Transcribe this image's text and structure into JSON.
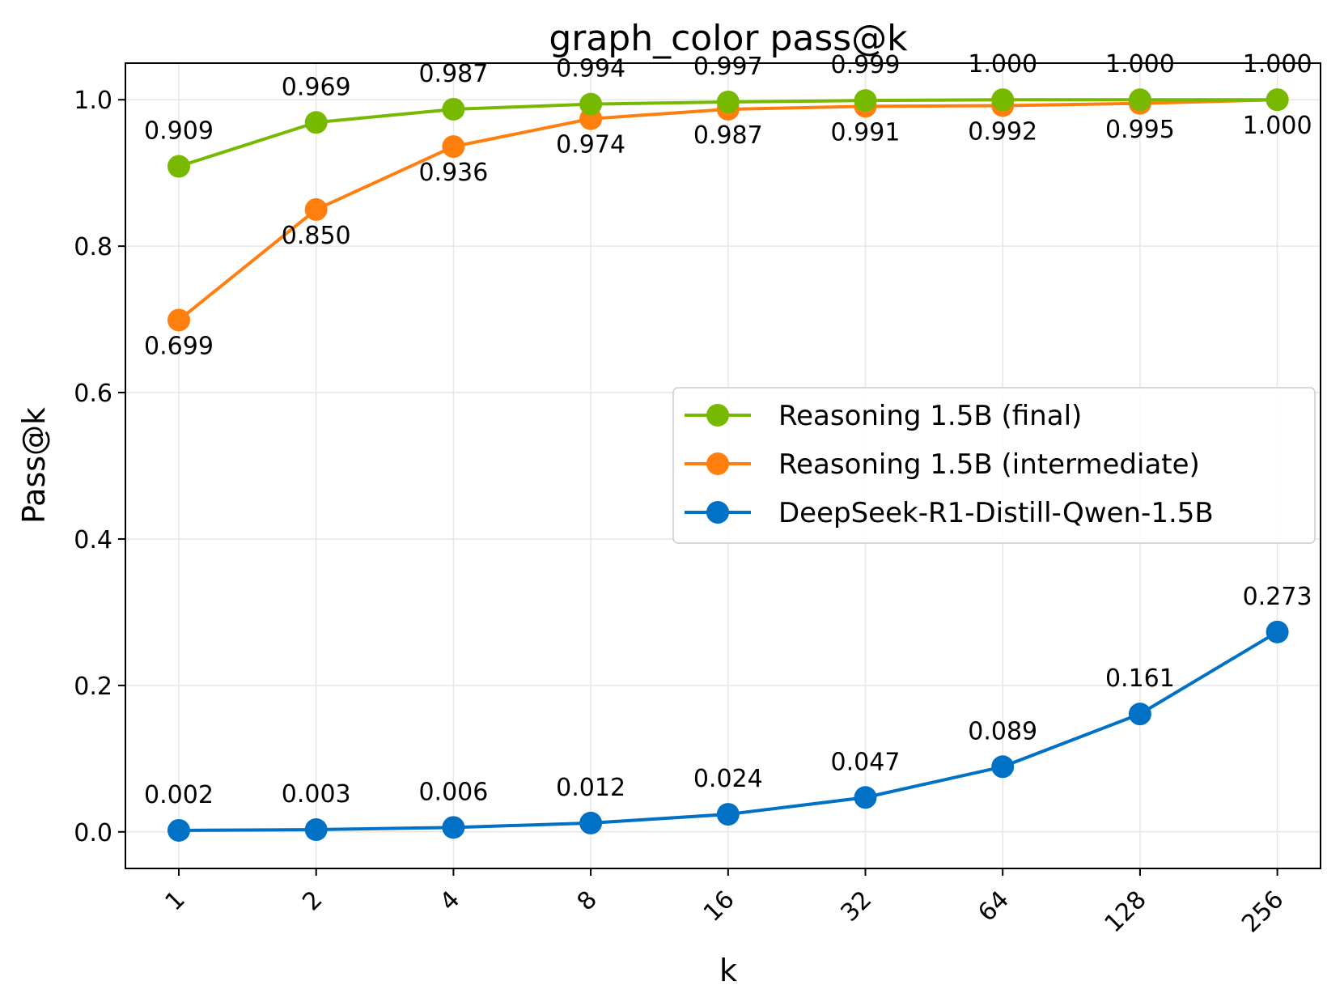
{
  "chart_data": {
    "type": "line",
    "title": "graph_color pass@k",
    "xlabel": "k",
    "ylabel": "Pass@k",
    "categories": [
      "1",
      "2",
      "4",
      "8",
      "16",
      "32",
      "64",
      "128",
      "256"
    ],
    "ylim": [
      -0.05,
      1.05
    ],
    "yticks": [
      0.0,
      0.2,
      0.4,
      0.6,
      0.8,
      1.0
    ],
    "ytick_labels": [
      "0.0",
      "0.2",
      "0.4",
      "0.6",
      "0.8",
      "1.0"
    ],
    "grid": true,
    "legend_position": "center-right",
    "series": [
      {
        "name": "Reasoning 1.5B (final)",
        "color": "#76b900",
        "label_side": "above",
        "values": [
          0.909,
          0.969,
          0.987,
          0.994,
          0.997,
          0.999,
          1.0,
          1.0,
          1.0
        ],
        "labels": [
          "0.909",
          "0.969",
          "0.987",
          "0.994",
          "0.997",
          "0.999",
          "1.000",
          "1.000",
          "1.000"
        ]
      },
      {
        "name": "Reasoning 1.5B (intermediate)",
        "color": "#ff7f0e",
        "label_side": "below",
        "values": [
          0.699,
          0.85,
          0.936,
          0.974,
          0.987,
          0.991,
          0.992,
          0.995,
          1.0
        ],
        "labels": [
          "0.699",
          "0.850",
          "0.936",
          "0.974",
          "0.987",
          "0.991",
          "0.992",
          "0.995",
          "1.000"
        ]
      },
      {
        "name": "DeepSeek-R1-Distill-Qwen-1.5B",
        "color": "#0071c5",
        "label_side": "above",
        "values": [
          0.002,
          0.003,
          0.006,
          0.012,
          0.024,
          0.047,
          0.089,
          0.161,
          0.273
        ],
        "labels": [
          "0.002",
          "0.003",
          "0.006",
          "0.012",
          "0.024",
          "0.047",
          "0.089",
          "0.161",
          "0.273"
        ]
      }
    ]
  }
}
